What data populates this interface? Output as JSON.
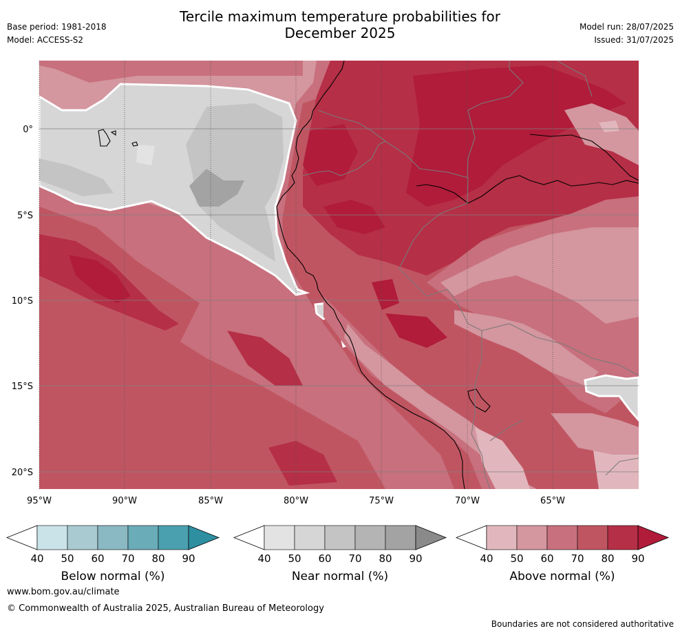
{
  "header": {
    "title_line1": "Tercile maximum temperature probabilities for",
    "title_line2": "December 2025",
    "base_period": "Base period: 1981-2018",
    "model": "Model: ACCESS-S2",
    "model_run": "Model run: 28/07/2025",
    "issued": "Issued: 31/07/2025"
  },
  "map": {
    "lon_range": [
      -95,
      -60
    ],
    "lat_range": [
      -21,
      4
    ],
    "lon_ticks": [
      "95°W",
      "90°W",
      "85°W",
      "80°W",
      "75°W",
      "70°W",
      "65°W"
    ],
    "lat_ticks": [
      "0°",
      "5°S",
      "10°S",
      "15°S",
      "20°S"
    ],
    "gridlines": true
  },
  "colorbars": [
    {
      "name": "below",
      "label": "Below normal (%)",
      "ticks": [
        "40",
        "50",
        "60",
        "70",
        "80",
        "90"
      ],
      "colors": [
        "#c9e3e8",
        "#a8cad0",
        "#8ab8c3",
        "#6aacb8",
        "#4aa0ae",
        "#2e8fa1"
      ]
    },
    {
      "name": "near",
      "label": "Near normal (%)",
      "ticks": [
        "40",
        "50",
        "60",
        "70",
        "80",
        "90"
      ],
      "colors": [
        "#e3e3e3",
        "#d6d6d6",
        "#c4c4c4",
        "#b4b4b4",
        "#a3a3a3",
        "#8a8a8a"
      ]
    },
    {
      "name": "above",
      "label": "Above normal (%)",
      "ticks": [
        "40",
        "50",
        "60",
        "70",
        "80",
        "90"
      ],
      "colors": [
        "#e1b7bd",
        "#d4969f",
        "#c8707d",
        "#c05562",
        "#b52f46",
        "#b01c3a"
      ]
    }
  ],
  "footer": {
    "url": "www.bom.gov.au/climate",
    "copyright": "© Commonwealth of Australia 2025, Australian Bureau of Meteorology",
    "disclaimer": "Boundaries are not considered authoritative"
  }
}
